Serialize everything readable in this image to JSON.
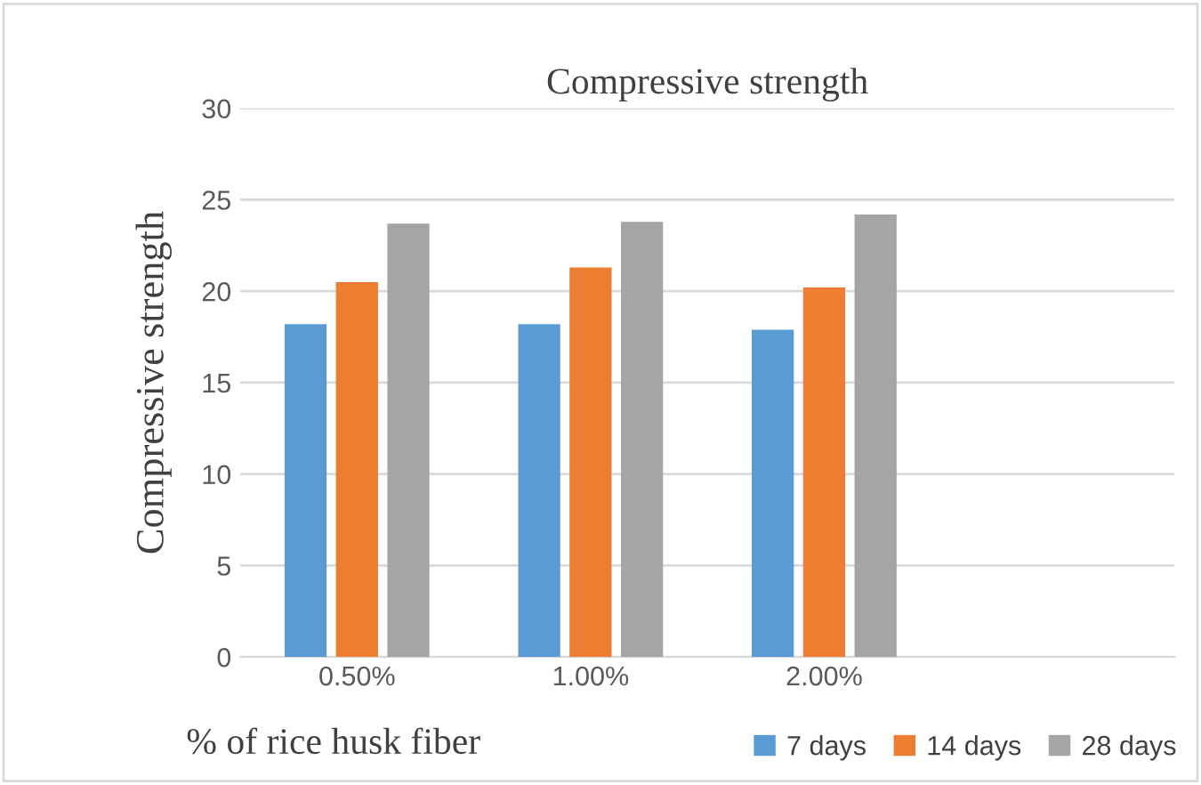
{
  "chart_data": {
    "type": "bar",
    "title": "Compressive strength",
    "xlabel": "% of rice husk fiber",
    "ylabel": "Compressive strength",
    "categories": [
      "0.50%",
      "1.00%",
      "2.00%",
      null
    ],
    "series": [
      {
        "name": "7 days",
        "color": "#5b9bd5",
        "values": [
          18.2,
          18.2,
          17.9,
          null
        ]
      },
      {
        "name": "14 days",
        "color": "#ed7d31",
        "values": [
          20.5,
          21.3,
          20.2,
          null
        ]
      },
      {
        "name": "28 days",
        "color": "#a5a5a5",
        "values": [
          23.7,
          23.8,
          24.2,
          null
        ]
      }
    ],
    "ylim": [
      0,
      30
    ],
    "yticks": [
      0,
      5,
      10,
      15,
      20,
      25,
      30
    ],
    "grid": "y",
    "legend": "bottom right"
  }
}
